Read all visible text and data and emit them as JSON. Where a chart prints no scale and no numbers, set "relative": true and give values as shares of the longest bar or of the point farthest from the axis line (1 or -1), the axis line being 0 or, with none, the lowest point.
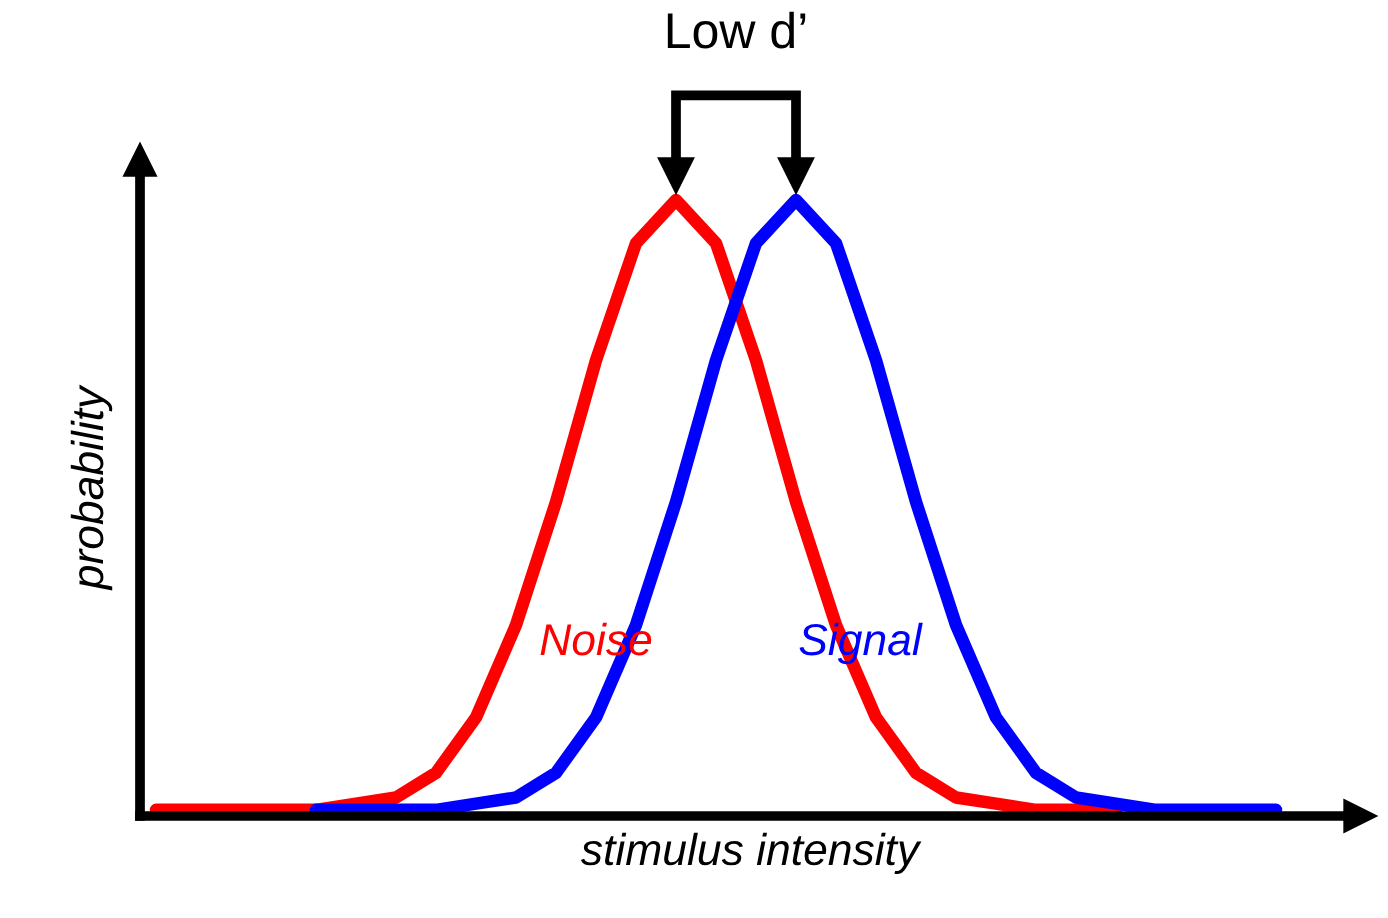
{
  "chart_data": {
    "type": "line",
    "relative": true,
    "xlabel": "stimulus intensity",
    "ylabel": "probability",
    "annotations": [
      "Low d’"
    ],
    "marker": "none",
    "line_style": "solid",
    "categories": [
      null,
      null,
      null,
      null,
      null,
      null,
      null,
      null,
      null,
      null,
      null,
      null,
      null,
      null,
      null,
      null,
      null,
      null,
      null,
      null,
      null,
      null,
      null,
      null,
      null,
      null,
      null,
      null,
      null
    ],
    "series": [
      {
        "name": "Noise",
        "color": "#ff0000",
        "values": [
          0.01,
          0.01,
          0.01,
          0.01,
          0.01,
          0.02,
          0.03,
          0.07,
          0.16,
          0.31,
          0.51,
          0.74,
          0.93,
          1.0,
          0.93,
          0.74,
          0.51,
          0.31,
          0.16,
          0.07,
          0.03,
          0.02,
          0.01,
          0.01,
          0.01,
          null,
          null,
          null,
          null
        ]
      },
      {
        "name": "Signal",
        "color": "#0000ff",
        "values": [
          null,
          null,
          null,
          null,
          0.01,
          0.01,
          0.01,
          0.01,
          0.02,
          0.03,
          0.07,
          0.16,
          0.31,
          0.51,
          0.74,
          0.93,
          1.0,
          0.93,
          0.74,
          0.51,
          0.31,
          0.16,
          0.07,
          0.03,
          0.02,
          0.01,
          0.01,
          0.01,
          0.01
        ]
      }
    ]
  }
}
